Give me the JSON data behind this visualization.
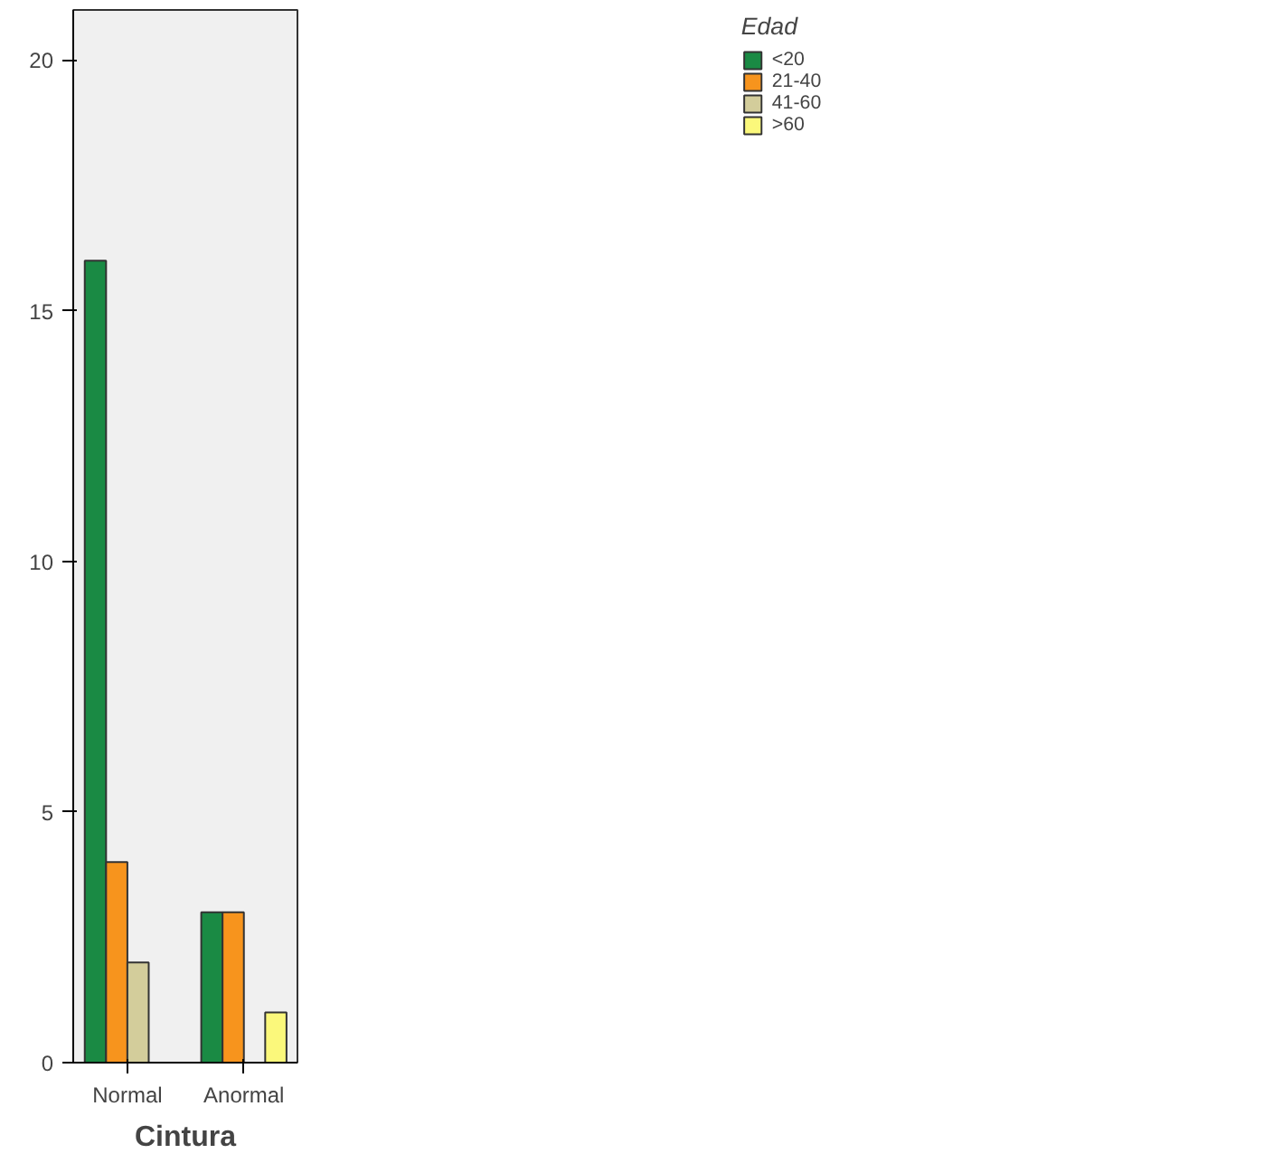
{
  "chart_data": {
    "type": "bar",
    "xlabel": "Cintura",
    "legend_title": "Edad",
    "categories": [
      "Normal",
      "Anormal"
    ],
    "series": [
      {
        "name": "<20",
        "color": "#1a8a44",
        "values": [
          16,
          3
        ]
      },
      {
        "name": "21-40",
        "color": "#f7941d",
        "values": [
          4,
          3
        ]
      },
      {
        "name": "41-60",
        "color": "#d3cd9b",
        "values": [
          2,
          null
        ]
      },
      {
        "name": ">60",
        "color": "#fbf87b",
        "values": [
          null,
          1
        ]
      }
    ],
    "ylim": [
      0,
      21
    ],
    "yticks": [
      0,
      5,
      10,
      15,
      20
    ],
    "grid": false,
    "legend": "top right"
  }
}
